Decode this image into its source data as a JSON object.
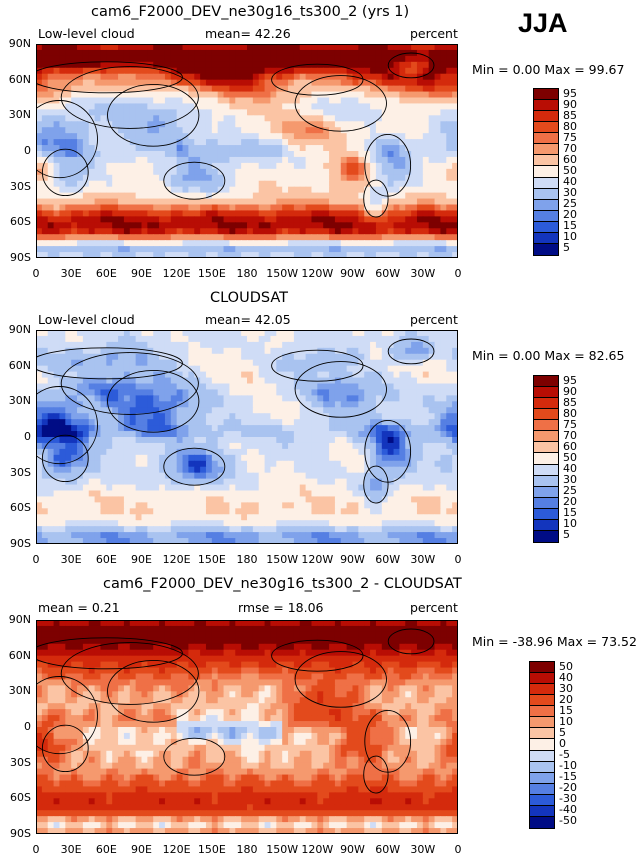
{
  "season": "JJA",
  "panels": [
    {
      "title": "cam6_F2000_DEV_ne30g16_ts300_2 (yrs 1)",
      "left_label": "Low-level cloud",
      "center_label": "mean=  42.26",
      "right_label": "percent",
      "minmax": "Min =    0.00 Max =   99.67",
      "field": "model",
      "levels": [
        "95",
        "90",
        "85",
        "80",
        "75",
        "70",
        "60",
        "50",
        "40",
        "30",
        "25",
        "20",
        "15",
        "10",
        "5"
      ]
    },
    {
      "title": "CLOUDSAT",
      "left_label": "Low-level cloud",
      "center_label": "mean=  42.05",
      "right_label": "percent",
      "minmax": "Min =    0.00 Max =   82.65",
      "field": "obs",
      "levels": [
        "95",
        "90",
        "85",
        "80",
        "75",
        "70",
        "60",
        "50",
        "40",
        "30",
        "25",
        "20",
        "15",
        "10",
        "5"
      ]
    },
    {
      "title": "cam6_F2000_DEV_ne30g16_ts300_2 - CLOUDSAT",
      "left_label": "mean =    0.21",
      "center_label": "rmse =   18.06",
      "right_label": "percent",
      "minmax": "Min = -38.96 Max =   73.52",
      "field": "diff",
      "levels": [
        "50",
        "40",
        "30",
        "20",
        "15",
        "10",
        "5",
        "0",
        "-5",
        "-10",
        "-15",
        "-20",
        "-30",
        "-40",
        "-50"
      ]
    }
  ],
  "lat_ticks": [
    "90N",
    "60N",
    "30N",
    "0",
    "30S",
    "60S",
    "90S"
  ],
  "lon_ticks": [
    "0",
    "30E",
    "60E",
    "90E",
    "120E",
    "150E",
    "180",
    "150W",
    "120W",
    "90W",
    "60W",
    "30W",
    "0"
  ],
  "colors": {
    "abs_scale": [
      "#7d0000",
      "#b80d04",
      "#d42a0c",
      "#e34a1c",
      "#ef7046",
      "#f5996e",
      "#fbc4a4",
      "#fdf0e6",
      "#cfdcf6",
      "#a9c3f0",
      "#7fa2eb",
      "#557fe3",
      "#2c5bd9",
      "#1335bd",
      "#000c85"
    ],
    "diff_scale": [
      "#7d0000",
      "#b80d04",
      "#d42a0c",
      "#e34a1c",
      "#ef7046",
      "#f5996e",
      "#fbc4a4",
      "#fdf0e6",
      "#cfdcf6",
      "#a9c3f0",
      "#7fa2eb",
      "#557fe3",
      "#2c5bd9",
      "#1335bd",
      "#000c85"
    ]
  }
}
